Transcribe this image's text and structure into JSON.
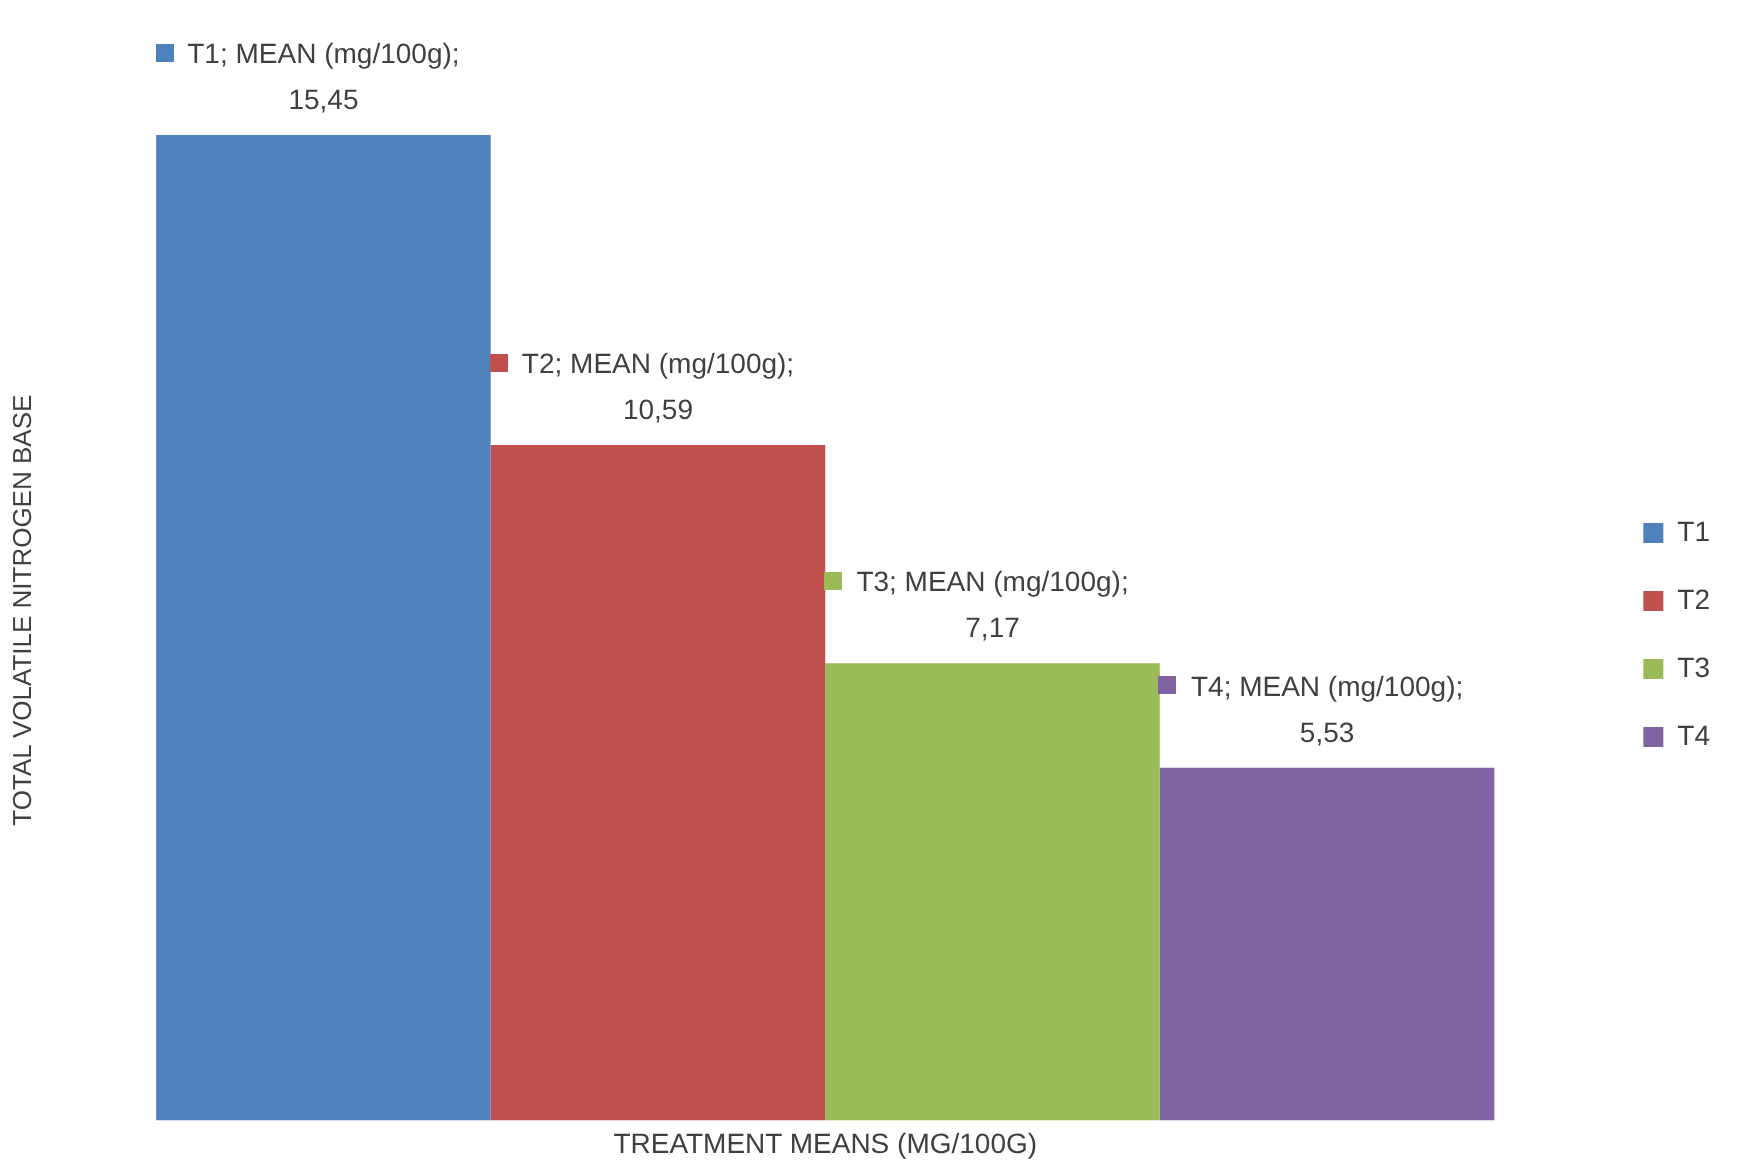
{
  "chart_data": {
    "type": "bar",
    "xlabel": "TREATMENT MEANS (MG/100G)",
    "ylabel": "TOTAL VOLATILE NITROGEN BASE",
    "categories": [
      null
    ],
    "series": [
      {
        "name": "T1",
        "color": "#4f81bd",
        "values": [
          15.45
        ],
        "value_labels": [
          "T1; MEAN (mg/100g); 15,45"
        ]
      },
      {
        "name": "T2",
        "color": "#c0504d",
        "values": [
          10.59
        ],
        "value_labels": [
          "T2; MEAN (mg/100g); 10,59"
        ]
      },
      {
        "name": "T3",
        "color": "#9bbb59",
        "values": [
          7.17
        ],
        "value_labels": [
          "T3; MEAN (mg/100g); 7,17"
        ]
      },
      {
        "name": "T4",
        "color": "#8064a2",
        "values": [
          5.53
        ],
        "value_labels": [
          "T4; MEAN (mg/100g); 5,53"
        ]
      }
    ],
    "legend": "right",
    "grid": false
  }
}
